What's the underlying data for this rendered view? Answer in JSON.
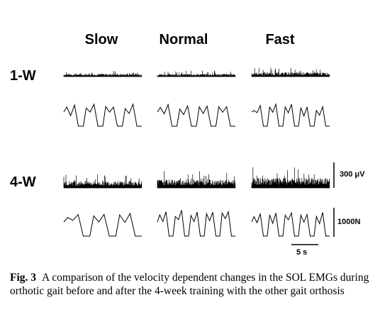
{
  "figure": {
    "columns": [
      "Slow",
      "Normal",
      "Fast"
    ],
    "rows": [
      "1-W",
      "4-W"
    ],
    "scale_emg": "300 μV",
    "scale_force": "1000N",
    "scale_time": "5 s"
  },
  "caption": {
    "label": "Fig. 3",
    "text": "A comparison of the velocity dependent changes in the SOL EMGs during orthotic gait before and after the 4-week training with the other gait orthosis"
  }
}
